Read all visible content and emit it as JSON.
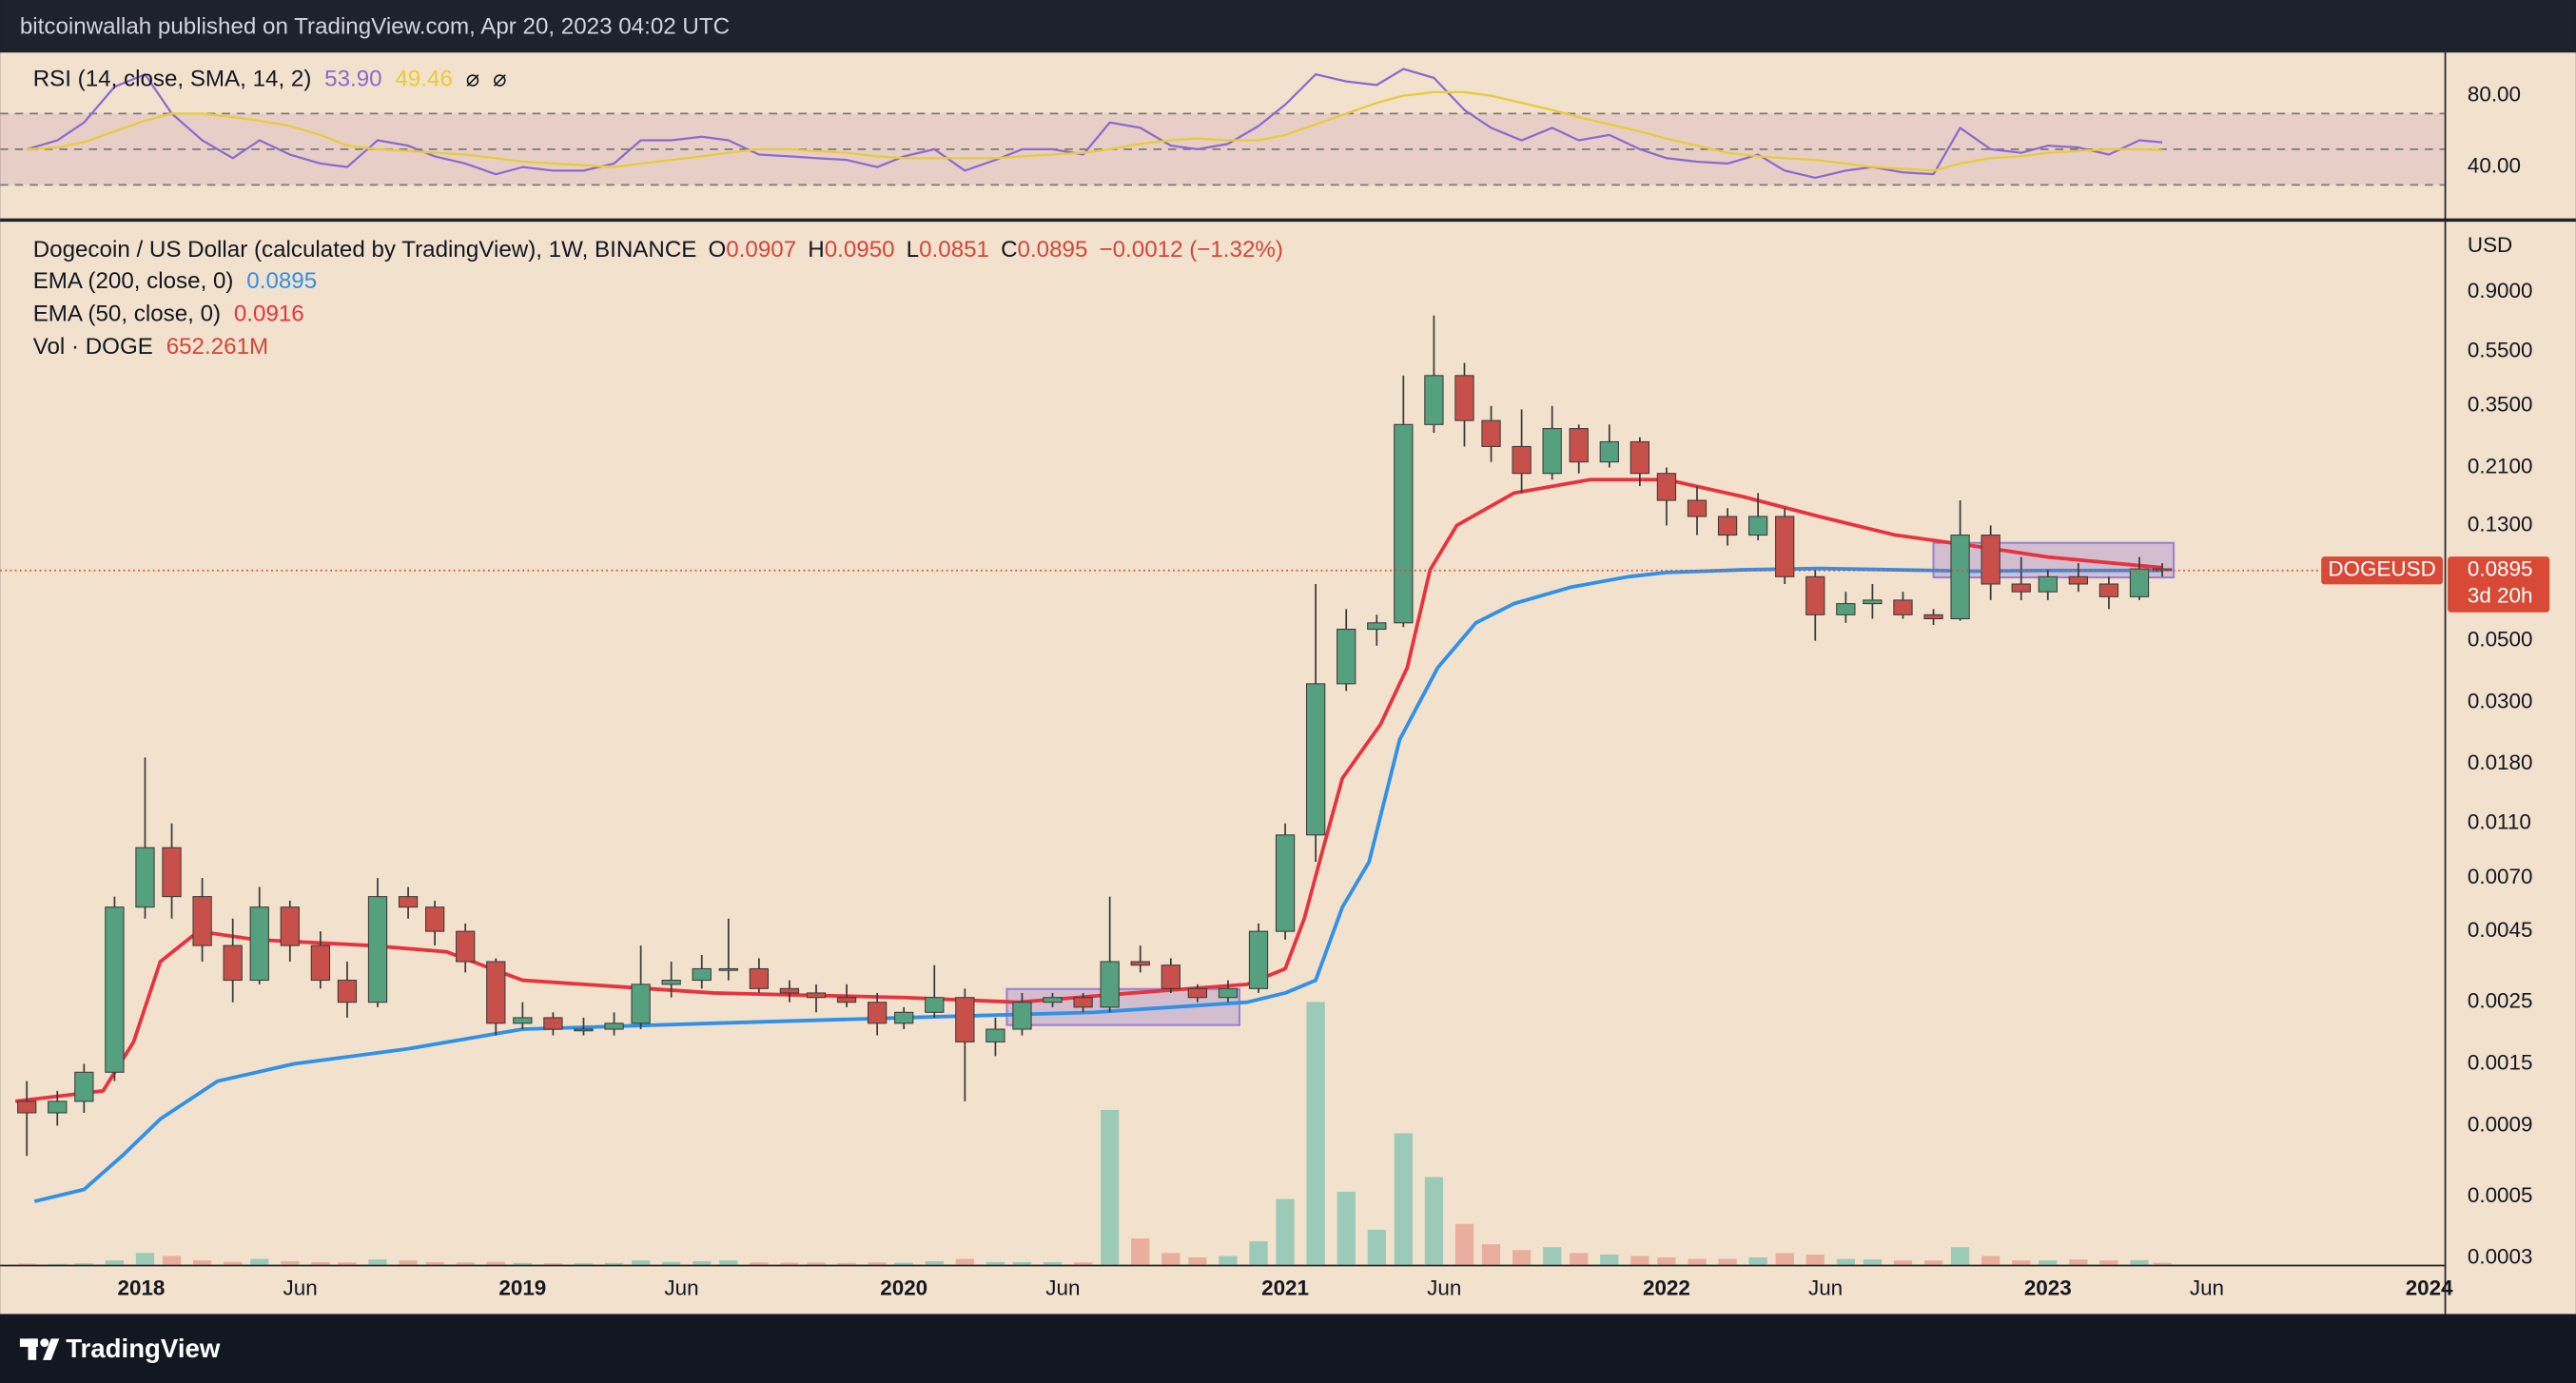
{
  "header": {
    "publisher": "bitcoinwallah published on TradingView.com, Apr 20, 2023 04:02 UTC"
  },
  "footer": {
    "brand": "TradingView"
  },
  "chart_data": [
    {
      "type": "candlestick",
      "title": "Dogecoin / US Dollar (calculated by TradingView), 1W, BINANCE",
      "ohlc_legend": [
        {
          "label": "O",
          "value": "0.0907"
        },
        {
          "label": "H",
          "value": "0.0950"
        },
        {
          "label": "L",
          "value": "0.0851"
        },
        {
          "label": "C",
          "value": "0.0895"
        }
      ],
      "change": "−0.0012 (−1.32%)",
      "legend_value_color": "#d2463b",
      "log_scale": true,
      "grid": false,
      "y_unit": "USD",
      "xlim": [
        2017.63,
        2024.04
      ],
      "xticks": [
        2018,
        {
          "value": 2018.417,
          "label": "Jun"
        },
        2019,
        {
          "value": 2019.417,
          "label": "Jun"
        },
        2020,
        {
          "value": 2020.417,
          "label": "Jun"
        },
        2021,
        {
          "value": 2021.417,
          "label": "Jun"
        },
        2022,
        {
          "value": 2022.417,
          "label": "Jun"
        },
        2023,
        {
          "value": 2023.417,
          "label": "Jun"
        },
        2024
      ],
      "ylim": [
        0.000284,
        1.61
      ],
      "yticks": [
        {
          "value": 0.9,
          "label": "0.9000"
        },
        {
          "value": 0.55,
          "label": "0.5500"
        },
        {
          "value": 0.35,
          "label": "0.3500"
        },
        {
          "value": 0.21,
          "label": "0.2100"
        },
        {
          "value": 0.13,
          "label": "0.1300"
        },
        {
          "value": 0.05,
          "label": "0.0500"
        },
        {
          "value": 0.03,
          "label": "0.0300"
        },
        {
          "value": 0.018,
          "label": "0.0180"
        },
        {
          "value": 0.011,
          "label": "0.0110"
        },
        {
          "value": 0.007,
          "label": "0.0070"
        },
        {
          "value": 0.0045,
          "label": "0.0045"
        },
        {
          "value": 0.0025,
          "label": "0.0025"
        },
        {
          "value": 0.0015,
          "label": "0.0015"
        },
        {
          "value": 0.0009,
          "label": "0.0009"
        },
        {
          "value": 0.0005,
          "label": "0.0005"
        },
        {
          "value": 0.0003,
          "label": "0.0003"
        }
      ],
      "colors": {
        "up": "#55a07f",
        "down": "#c8504a",
        "wick": "#3a3a3a"
      },
      "x": [
        2017.7,
        2017.78,
        2017.85,
        2017.93,
        2018.01,
        2018.08,
        2018.16,
        2018.24,
        2018.31,
        2018.39,
        2018.47,
        2018.54,
        2018.62,
        2018.7,
        2018.77,
        2018.85,
        2018.93,
        2019.0,
        2019.08,
        2019.16,
        2019.24,
        2019.31,
        2019.39,
        2019.47,
        2019.54,
        2019.62,
        2019.7,
        2019.77,
        2019.85,
        2019.93,
        2020.0,
        2020.08,
        2020.16,
        2020.24,
        2020.31,
        2020.39,
        2020.47,
        2020.54,
        2020.62,
        2020.7,
        2020.77,
        2020.85,
        2020.93,
        2021.0,
        2021.08,
        2021.16,
        2021.24,
        2021.31,
        2021.39,
        2021.47,
        2021.54,
        2021.62,
        2021.7,
        2021.77,
        2021.85,
        2021.93,
        2022.0,
        2022.08,
        2022.16,
        2022.24,
        2022.31,
        2022.39,
        2022.47,
        2022.54,
        2022.62,
        2022.7,
        2022.77,
        2022.85,
        2022.93,
        2023.0,
        2023.08,
        2023.16,
        2023.24,
        2023.3
      ],
      "open": [
        0.0011,
        0.001,
        0.0011,
        0.0014,
        0.0055,
        0.009,
        0.006,
        0.004,
        0.003,
        0.0055,
        0.004,
        0.003,
        0.0025,
        0.006,
        0.0055,
        0.0045,
        0.0035,
        0.0021,
        0.0022,
        0.002,
        0.002,
        0.0021,
        0.0029,
        0.003,
        0.0033,
        0.0033,
        0.0028,
        0.0027,
        0.0026,
        0.0025,
        0.0021,
        0.0023,
        0.0026,
        0.0018,
        0.002,
        0.0025,
        0.0026,
        0.0024,
        0.0035,
        0.0034,
        0.0028,
        0.0026,
        0.0028,
        0.0045,
        0.01,
        0.035,
        0.055,
        0.058,
        0.3,
        0.45,
        0.31,
        0.25,
        0.2,
        0.29,
        0.22,
        0.26,
        0.2,
        0.16,
        0.14,
        0.12,
        0.14,
        0.085,
        0.062,
        0.068,
        0.07,
        0.062,
        0.06,
        0.12,
        0.08,
        0.075,
        0.085,
        0.08,
        0.072,
        0.0907
      ],
      "high": [
        0.0013,
        0.0012,
        0.0015,
        0.006,
        0.019,
        0.011,
        0.007,
        0.005,
        0.0065,
        0.0058,
        0.0045,
        0.0035,
        0.007,
        0.0065,
        0.0058,
        0.0048,
        0.0036,
        0.0025,
        0.0023,
        0.0022,
        0.0023,
        0.004,
        0.0035,
        0.0037,
        0.005,
        0.0036,
        0.003,
        0.0029,
        0.0029,
        0.0027,
        0.0024,
        0.0034,
        0.0028,
        0.0022,
        0.0027,
        0.0027,
        0.0027,
        0.006,
        0.004,
        0.0036,
        0.0029,
        0.003,
        0.0048,
        0.011,
        0.08,
        0.065,
        0.062,
        0.45,
        0.74,
        0.5,
        0.35,
        0.34,
        0.35,
        0.3,
        0.3,
        0.27,
        0.21,
        0.18,
        0.15,
        0.17,
        0.15,
        0.09,
        0.075,
        0.08,
        0.075,
        0.065,
        0.16,
        0.13,
        0.1,
        0.09,
        0.095,
        0.085,
        0.1,
        0.095
      ],
      "low": [
        0.0007,
        0.0009,
        0.001,
        0.0013,
        0.005,
        0.005,
        0.0035,
        0.0025,
        0.0029,
        0.0035,
        0.0028,
        0.0022,
        0.0024,
        0.005,
        0.004,
        0.0032,
        0.0019,
        0.002,
        0.0019,
        0.0019,
        0.0019,
        0.002,
        0.0026,
        0.0028,
        0.003,
        0.0027,
        0.0025,
        0.0023,
        0.0024,
        0.0019,
        0.002,
        0.0022,
        0.0011,
        0.0016,
        0.0019,
        0.0024,
        0.0023,
        0.0023,
        0.0032,
        0.0027,
        0.0025,
        0.0025,
        0.0027,
        0.0042,
        0.008,
        0.033,
        0.048,
        0.056,
        0.28,
        0.25,
        0.22,
        0.17,
        0.19,
        0.2,
        0.21,
        0.18,
        0.13,
        0.12,
        0.11,
        0.115,
        0.08,
        0.05,
        0.058,
        0.06,
        0.06,
        0.057,
        0.059,
        0.07,
        0.07,
        0.07,
        0.075,
        0.065,
        0.07,
        0.0851
      ],
      "close": [
        0.001,
        0.0011,
        0.0014,
        0.0055,
        0.009,
        0.006,
        0.004,
        0.003,
        0.0055,
        0.004,
        0.003,
        0.0025,
        0.006,
        0.0055,
        0.0045,
        0.0035,
        0.0021,
        0.0022,
        0.002,
        0.002,
        0.0021,
        0.0029,
        0.003,
        0.0033,
        0.0033,
        0.0028,
        0.0027,
        0.0026,
        0.0025,
        0.0021,
        0.0023,
        0.0026,
        0.0018,
        0.002,
        0.0025,
        0.0026,
        0.0024,
        0.0035,
        0.0034,
        0.0028,
        0.0026,
        0.0028,
        0.0045,
        0.01,
        0.035,
        0.055,
        0.058,
        0.3,
        0.45,
        0.31,
        0.25,
        0.2,
        0.29,
        0.22,
        0.26,
        0.2,
        0.16,
        0.14,
        0.12,
        0.14,
        0.085,
        0.062,
        0.068,
        0.07,
        0.062,
        0.06,
        0.12,
        0.08,
        0.075,
        0.085,
        0.08,
        0.072,
        0.0907,
        0.0895
      ],
      "overlays": [
        {
          "name": "EMA (200, close, 0)",
          "value_label": "0.0895",
          "color": "#2f91e8",
          "x": [
            2017.72,
            2017.85,
            2017.95,
            2018.05,
            2018.2,
            2018.4,
            2018.7,
            2019.0,
            2019.5,
            2020.0,
            2020.5,
            2020.9,
            2021.0,
            2021.08,
            2021.15,
            2021.22,
            2021.3,
            2021.4,
            2021.5,
            2021.6,
            2021.75,
            2021.9,
            2022.0,
            2022.2,
            2022.4,
            2022.6,
            2022.8,
            2023.0,
            2023.3
          ],
          "values": [
            0.00048,
            0.00053,
            0.0007,
            0.00095,
            0.0013,
            0.0015,
            0.0017,
            0.002,
            0.0021,
            0.0022,
            0.0023,
            0.0025,
            0.0027,
            0.003,
            0.0055,
            0.008,
            0.022,
            0.04,
            0.058,
            0.068,
            0.078,
            0.085,
            0.088,
            0.09,
            0.091,
            0.09,
            0.089,
            0.0895,
            0.0895
          ]
        },
        {
          "name": "EMA (50, close, 0)",
          "value_label": "0.0916",
          "color": "#e8333f",
          "x": [
            2017.67,
            2017.9,
            2017.98,
            2018.05,
            2018.15,
            2018.3,
            2018.6,
            2018.8,
            2019.0,
            2019.5,
            2020.0,
            2020.3,
            2020.6,
            2020.9,
            2021.0,
            2021.05,
            2021.1,
            2021.15,
            2021.25,
            2021.32,
            2021.38,
            2021.45,
            2021.6,
            2021.8,
            2022.0,
            2022.2,
            2022.4,
            2022.6,
            2022.8,
            2023.0,
            2023.3
          ],
          "values": [
            0.0011,
            0.0012,
            0.0018,
            0.0035,
            0.0045,
            0.0042,
            0.004,
            0.0038,
            0.003,
            0.0027,
            0.0026,
            0.0025,
            0.0027,
            0.0029,
            0.0033,
            0.005,
            0.009,
            0.016,
            0.025,
            0.04,
            0.09,
            0.13,
            0.17,
            0.19,
            0.19,
            0.165,
            0.14,
            0.12,
            0.11,
            0.1,
            0.0916
          ]
        }
      ],
      "volume": {
        "name": "Vol · DOGE",
        "value_label": "652.261M",
        "ylim": [
          0,
          90000
        ],
        "up_color": "#8cc7b4",
        "down_color": "#e9a597",
        "values": [
          400,
          300,
          500,
          1500,
          4000,
          3000,
          1500,
          1000,
          2000,
          1200,
          900,
          800,
          1800,
          1500,
          900,
          800,
          1000,
          600,
          500,
          500,
          600,
          1500,
          1000,
          1200,
          1500,
          800,
          700,
          700,
          600,
          800,
          700,
          1200,
          2000,
          900,
          900,
          900,
          800,
          53000,
          9000,
          4000,
          2500,
          3000,
          8000,
          22500,
          90000,
          25000,
          12000,
          45000,
          30000,
          14000,
          7000,
          5000,
          6000,
          4000,
          3500,
          3000,
          2500,
          2000,
          2000,
          2500,
          4000,
          3500,
          2000,
          1800,
          1500,
          1500,
          6000,
          3000,
          1500,
          1500,
          1800,
          1500,
          1600,
          652.261
        ]
      },
      "last_price": {
        "symbol": "DOGEUSD",
        "value": 0.0895,
        "label": "0.0895",
        "countdown": "3d 20h",
        "color": "#d84a36"
      },
      "boxes": [
        {
          "x": [
            2020.27,
            2020.88
          ],
          "y": [
            0.00207,
            0.00279
          ],
          "color": "#9b7fd4"
        },
        {
          "x": [
            2022.7,
            2023.33
          ],
          "y": [
            0.0845,
            0.1125
          ],
          "color": "#9b7fd4"
        }
      ]
    },
    {
      "type": "line",
      "title": "RSI (14, close, SMA, 14, 2)",
      "legend_values": [
        "53.90",
        "49.46"
      ],
      "legend_icons": [
        "⌀",
        "⌀"
      ],
      "ylim": [
        11.2,
        104.2
      ],
      "yticks": [
        {
          "value": 80,
          "label": "80.00"
        },
        {
          "value": 40,
          "label": "40.00"
        }
      ],
      "levels": [
        70,
        50,
        30
      ],
      "band": [
        30,
        70
      ],
      "band_color": "#c99bb8",
      "series": [
        {
          "color": "#8c6ad0",
          "values": [
            50,
            55,
            65,
            85,
            92,
            70,
            55,
            45,
            55,
            47,
            42,
            40,
            55,
            52,
            46,
            42,
            36,
            40,
            38,
            38,
            42,
            55,
            55,
            57,
            55,
            47,
            46,
            45,
            44,
            40,
            46,
            50,
            38,
            44,
            50,
            50,
            47,
            65,
            62,
            52,
            50,
            53,
            63,
            75,
            92,
            88,
            86,
            95,
            90,
            72,
            62,
            55,
            62,
            55,
            58,
            50,
            45,
            43,
            42,
            47,
            38,
            34,
            38,
            40,
            37,
            36,
            62,
            50,
            48,
            52,
            51,
            47,
            55,
            53.9
          ]
        },
        {
          "color": "#e6cc3a",
          "values": [
            50,
            51,
            54,
            60,
            66,
            70,
            70,
            68,
            66,
            63,
            58,
            52,
            50,
            49,
            48,
            47,
            45,
            43,
            42,
            41,
            40,
            42,
            44,
            46,
            48,
            50,
            50,
            49,
            48,
            46,
            45,
            45,
            45,
            45,
            46,
            47,
            48,
            50,
            53,
            55,
            56,
            55,
            55,
            58,
            64,
            70,
            76,
            80,
            82,
            82,
            80,
            76,
            72,
            68,
            64,
            60,
            56,
            52,
            48,
            46,
            45,
            44,
            42,
            40,
            39,
            38,
            42,
            45,
            46,
            48,
            49,
            50,
            50,
            49.46
          ]
        }
      ]
    }
  ]
}
